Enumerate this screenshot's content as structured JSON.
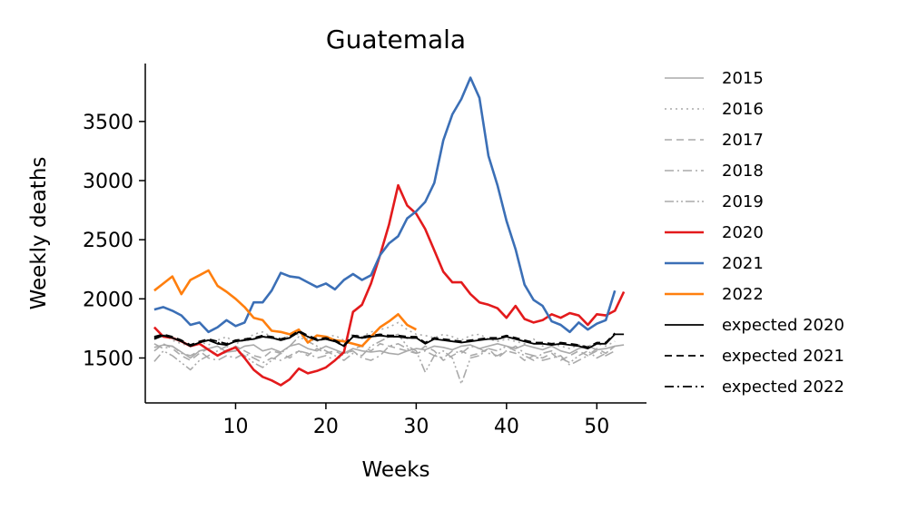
{
  "chart_data": {
    "type": "line",
    "title": "Guatemala",
    "xlabel": "Weeks",
    "ylabel": "Weekly deaths",
    "xlim": [
      0,
      55.5
    ],
    "ylim": [
      1120,
      3990
    ],
    "xticks": [
      10,
      20,
      30,
      40,
      50
    ],
    "yticks": [
      1500,
      2000,
      2500,
      3000,
      3500
    ],
    "grid": false,
    "legend_position": "right",
    "series": [
      {
        "name": "2015",
        "color": "#aaaaaa",
        "dash": "solid",
        "x": [
          1,
          2,
          3,
          4,
          5,
          6,
          7,
          8,
          9,
          10,
          11,
          12,
          13,
          14,
          15,
          16,
          17,
          18,
          19,
          20,
          21,
          22,
          23,
          24,
          25,
          26,
          27,
          28,
          29,
          30,
          31,
          32,
          33,
          34,
          35,
          36,
          37,
          38,
          39,
          40,
          41,
          42,
          43,
          44,
          45,
          46,
          47,
          48,
          49,
          50,
          51,
          52,
          53
        ],
        "values": [
          1590,
          1610,
          1600,
          1550,
          1500,
          1560,
          1580,
          1600,
          1550,
          1560,
          1600,
          1610,
          1560,
          1580,
          1550,
          1600,
          1620,
          1580,
          1560,
          1600,
          1570,
          1540,
          1580,
          1560,
          1550,
          1560,
          1540,
          1530,
          1560,
          1580,
          1570,
          1600,
          1590,
          1570,
          1600,
          1610,
          1580,
          1600,
          1620,
          1600,
          1580,
          1610,
          1590,
          1570,
          1600,
          1560,
          1540,
          1580,
          1600,
          1570,
          1580,
          1600,
          1610
        ]
      },
      {
        "name": "2016",
        "color": "#aaaaaa",
        "dash": "dotted",
        "x": [
          1,
          2,
          3,
          4,
          5,
          6,
          7,
          8,
          9,
          10,
          11,
          12,
          13,
          14,
          15,
          16,
          17,
          18,
          19,
          20,
          21,
          22,
          23,
          24,
          25,
          26,
          27,
          28,
          29,
          30,
          31,
          32,
          33,
          34,
          35,
          36,
          37,
          38,
          39,
          40,
          41,
          42,
          43,
          44,
          45,
          46,
          47,
          48,
          49,
          50,
          51,
          52
        ],
        "values": [
          1660,
          1700,
          1650,
          1620,
          1600,
          1640,
          1610,
          1650,
          1680,
          1620,
          1650,
          1700,
          1720,
          1680,
          1650,
          1690,
          1700,
          1660,
          1640,
          1680,
          1690,
          1650,
          1700,
          1680,
          1720,
          1740,
          1760,
          1800,
          1740,
          1700,
          1690,
          1670,
          1700,
          1680,
          1650,
          1690,
          1700,
          1660,
          1640,
          1660,
          1640,
          1620,
          1660,
          1600,
          1620,
          1600,
          1580,
          1610,
          1600,
          1620,
          1600,
          1640
        ]
      },
      {
        "name": "2017",
        "color": "#aaaaaa",
        "dash": "dashed",
        "x": [
          1,
          2,
          3,
          4,
          5,
          6,
          7,
          8,
          9,
          10,
          11,
          12,
          13,
          14,
          15,
          16,
          17,
          18,
          19,
          20,
          21,
          22,
          23,
          24,
          25,
          26,
          27,
          28,
          29,
          30,
          31,
          32,
          33,
          34,
          35,
          36,
          37,
          38,
          39,
          40,
          41,
          42,
          43,
          44,
          45,
          46,
          47,
          48,
          49,
          50,
          51,
          52
        ],
        "values": [
          1560,
          1620,
          1580,
          1520,
          1480,
          1540,
          1580,
          1520,
          1550,
          1600,
          1560,
          1520,
          1500,
          1560,
          1540,
          1500,
          1560,
          1520,
          1580,
          1540,
          1560,
          1520,
          1580,
          1600,
          1560,
          1620,
          1600,
          1580,
          1560,
          1540,
          1600,
          1560,
          1480,
          1520,
          1560,
          1520,
          1540,
          1580,
          1500,
          1560,
          1540,
          1480,
          1520,
          1500,
          1540,
          1480,
          1520,
          1560,
          1520,
          1580,
          1540,
          1600
        ]
      },
      {
        "name": "2018",
        "color": "#aaaaaa",
        "dash": "dashdot",
        "x": [
          1,
          2,
          3,
          4,
          5,
          6,
          7,
          8,
          9,
          10,
          11,
          12,
          13,
          14,
          15,
          16,
          17,
          18,
          19,
          20,
          21,
          22,
          23,
          24,
          25,
          26,
          27,
          28,
          29,
          30,
          31,
          32,
          33,
          34,
          35,
          36,
          37,
          38,
          39,
          40,
          41,
          42,
          43,
          44,
          45,
          46,
          47,
          48,
          49,
          50,
          51,
          52
        ],
        "values": [
          1620,
          1580,
          1600,
          1540,
          1520,
          1560,
          1500,
          1480,
          1520,
          1500,
          1540,
          1500,
          1460,
          1500,
          1480,
          1520,
          1560,
          1540,
          1500,
          1520,
          1480,
          1540,
          1560,
          1500,
          1480,
          1520,
          1600,
          1620,
          1580,
          1540,
          1560,
          1520,
          1500,
          1560,
          1540,
          1600,
          1580,
          1540,
          1520,
          1560,
          1600,
          1540,
          1520,
          1480,
          1500,
          1520,
          1440,
          1480,
          1520,
          1560,
          1520,
          1560
        ]
      },
      {
        "name": "2019",
        "color": "#aaaaaa",
        "dash": "dashdotdot",
        "x": [
          1,
          2,
          3,
          4,
          5,
          6,
          7,
          8,
          9,
          10,
          11,
          12,
          13,
          14,
          15,
          16,
          17,
          18,
          19,
          20,
          21,
          22,
          23,
          24,
          25,
          26,
          27,
          28,
          29,
          30,
          31,
          32,
          33,
          34,
          35,
          36,
          37,
          38,
          39,
          40,
          41,
          42,
          43,
          44,
          45,
          46,
          47,
          48,
          49,
          50,
          51,
          52
        ],
        "values": [
          1470,
          1560,
          1520,
          1460,
          1400,
          1480,
          1520,
          1560,
          1600,
          1560,
          1520,
          1460,
          1420,
          1480,
          1540,
          1600,
          1680,
          1640,
          1600,
          1560,
          1520,
          1480,
          1540,
          1520,
          1600,
          1640,
          1680,
          1700,
          1600,
          1560,
          1380,
          1520,
          1560,
          1500,
          1280,
          1500,
          1520,
          1580,
          1560,
          1600,
          1560,
          1520,
          1480,
          1540,
          1560,
          1500,
          1460,
          1520,
          1560,
          1500,
          1540,
          1600
        ]
      },
      {
        "name": "2020",
        "color": "#e31a1c",
        "dash": "solid",
        "x": [
          1,
          2,
          3,
          4,
          5,
          6,
          7,
          8,
          9,
          10,
          11,
          12,
          13,
          14,
          15,
          16,
          17,
          18,
          19,
          20,
          21,
          22,
          23,
          24,
          25,
          26,
          27,
          28,
          29,
          30,
          31,
          32,
          33,
          34,
          35,
          36,
          37,
          38,
          39,
          40,
          41,
          42,
          43,
          44,
          45,
          46,
          47,
          48,
          49,
          50,
          51,
          52,
          53
        ],
        "values": [
          1760,
          1680,
          1670,
          1640,
          1600,
          1620,
          1570,
          1520,
          1560,
          1590,
          1500,
          1400,
          1340,
          1310,
          1270,
          1320,
          1410,
          1370,
          1390,
          1420,
          1480,
          1550,
          1890,
          1950,
          2130,
          2370,
          2630,
          2960,
          2790,
          2720,
          2590,
          2410,
          2230,
          2140,
          2140,
          2040,
          1970,
          1950,
          1920,
          1840,
          1940,
          1830,
          1800,
          1820,
          1870,
          1840,
          1880,
          1860,
          1780,
          1870,
          1860,
          1900,
          2060
        ]
      },
      {
        "name": "2021",
        "color": "#3b6fb6",
        "dash": "solid",
        "x": [
          1,
          2,
          3,
          4,
          5,
          6,
          7,
          8,
          9,
          10,
          11,
          12,
          13,
          14,
          15,
          16,
          17,
          18,
          19,
          20,
          21,
          22,
          23,
          24,
          25,
          26,
          27,
          28,
          29,
          30,
          31,
          32,
          33,
          34,
          35,
          36,
          37,
          38,
          39,
          40,
          41,
          42,
          43,
          44,
          45,
          46,
          47,
          48,
          49,
          50,
          51,
          52
        ],
        "values": [
          1910,
          1930,
          1900,
          1860,
          1780,
          1800,
          1720,
          1760,
          1820,
          1770,
          1800,
          1970,
          1970,
          2070,
          2220,
          2190,
          2180,
          2140,
          2100,
          2130,
          2080,
          2160,
          2210,
          2160,
          2200,
          2370,
          2470,
          2530,
          2680,
          2740,
          2820,
          2980,
          3340,
          3560,
          3690,
          3870,
          3700,
          3210,
          2960,
          2660,
          2420,
          2120,
          1990,
          1940,
          1810,
          1780,
          1720,
          1800,
          1740,
          1790,
          1820,
          2070
        ]
      },
      {
        "name": "2022",
        "color": "#ff7f0e",
        "dash": "solid",
        "x": [
          1,
          2,
          3,
          4,
          5,
          6,
          7,
          8,
          9,
          10,
          11,
          12,
          13,
          14,
          15,
          16,
          17,
          18,
          19,
          20,
          21,
          22,
          23,
          24,
          25,
          26,
          27,
          28,
          29,
          30
        ],
        "values": [
          2070,
          2130,
          2190,
          2040,
          2160,
          2200,
          2240,
          2110,
          2060,
          2000,
          1930,
          1840,
          1820,
          1730,
          1720,
          1700,
          1740,
          1630,
          1690,
          1680,
          1650,
          1640,
          1620,
          1600,
          1680,
          1760,
          1810,
          1870,
          1780,
          1740
        ]
      },
      {
        "name": "expected 2020",
        "color": "#000000",
        "dash": "solid",
        "x": [
          1,
          2,
          3,
          4,
          5,
          6,
          7,
          8,
          9,
          10,
          11,
          12,
          13,
          14,
          15,
          16,
          17,
          18,
          19,
          20,
          21,
          22,
          23,
          24,
          25,
          26,
          27,
          28,
          29,
          30,
          31,
          32,
          33,
          34,
          35,
          36,
          37,
          38,
          39,
          40,
          41,
          42,
          43,
          44,
          45,
          46,
          47,
          48,
          49,
          50,
          51,
          52,
          53
        ],
        "values": [
          1660,
          1690,
          1670,
          1640,
          1600,
          1630,
          1650,
          1620,
          1610,
          1640,
          1650,
          1660,
          1680,
          1670,
          1650,
          1670,
          1720,
          1680,
          1650,
          1660,
          1640,
          1600,
          1680,
          1670,
          1680,
          1690,
          1680,
          1680,
          1670,
          1670,
          1620,
          1660,
          1650,
          1640,
          1630,
          1640,
          1650,
          1660,
          1660,
          1680,
          1660,
          1640,
          1620,
          1620,
          1610,
          1620,
          1610,
          1600,
          1580,
          1620,
          1620,
          1700,
          1700
        ]
      },
      {
        "name": "expected 2021",
        "color": "#000000",
        "dash": "dashed",
        "x": [
          1,
          2,
          3,
          4,
          5,
          6,
          7,
          8,
          9,
          10,
          11,
          12,
          13,
          14,
          15,
          16,
          17,
          18,
          19,
          20,
          21,
          22,
          23,
          24,
          25,
          26,
          27,
          28,
          29,
          30,
          31,
          32,
          33,
          34,
          35,
          36,
          37,
          38,
          39,
          40,
          41,
          42,
          43,
          44,
          45,
          46,
          47,
          48,
          49,
          50,
          51,
          52
        ],
        "values": [
          1680,
          1700,
          1680,
          1650,
          1610,
          1640,
          1660,
          1640,
          1620,
          1650,
          1660,
          1670,
          1690,
          1680,
          1660,
          1680,
          1730,
          1690,
          1660,
          1670,
          1650,
          1610,
          1690,
          1680,
          1690,
          1700,
          1690,
          1690,
          1680,
          1680,
          1630,
          1670,
          1660,
          1650,
          1640,
          1650,
          1660,
          1670,
          1670,
          1690,
          1670,
          1650,
          1630,
          1630,
          1620,
          1630,
          1620,
          1610,
          1590,
          1630,
          1630,
          1710
        ]
      },
      {
        "name": "expected 2022",
        "color": "#000000",
        "dash": "dashdot",
        "x": [
          1,
          2,
          3,
          4,
          5,
          6,
          7,
          8,
          9,
          10,
          11,
          12,
          13,
          14,
          15,
          16,
          17,
          18,
          19,
          20,
          21,
          22,
          23,
          24,
          25,
          26,
          27,
          28,
          29,
          30
        ],
        "values": [
          1670,
          1690,
          1670,
          1640,
          1600,
          1630,
          1650,
          1630,
          1610,
          1640,
          1650,
          1660,
          1680,
          1670,
          1650,
          1670,
          1720,
          1680,
          1650,
          1660,
          1640,
          1600,
          1680,
          1670,
          1680,
          1690,
          1680,
          1680,
          1670,
          1670
        ]
      }
    ]
  }
}
